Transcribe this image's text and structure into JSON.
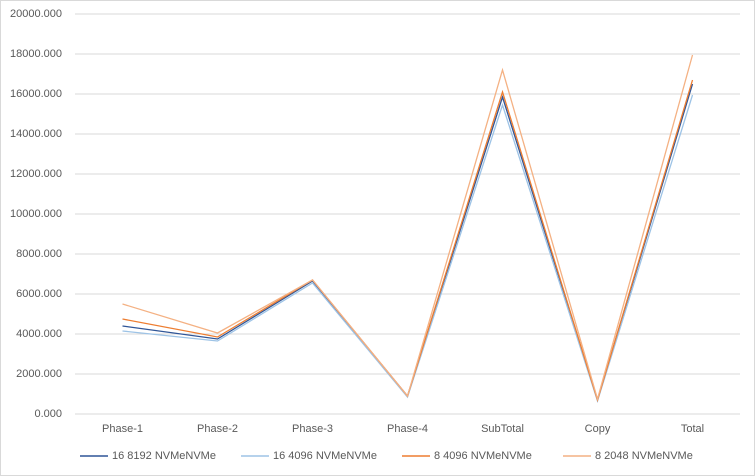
{
  "chart_data": {
    "type": "line",
    "categories": [
      "Phase-1",
      "Phase-2",
      "Phase-3",
      "Phase-4",
      "SubTotal",
      "Copy",
      "Total"
    ],
    "series": [
      {
        "name": "16 8192 NVMeNVMe",
        "color": "#2f5597",
        "values": [
          4400,
          3750,
          6650,
          900,
          15850,
          700,
          16500
        ]
      },
      {
        "name": "16 4096 NVMeNVMe",
        "color": "#9dc3e6",
        "values": [
          4150,
          3650,
          6550,
          850,
          15450,
          650,
          15950
        ]
      },
      {
        "name": "8 4096 NVMeNVMe",
        "color": "#ed7d31",
        "values": [
          4750,
          3850,
          6700,
          900,
          16100,
          700,
          16700
        ]
      },
      {
        "name": "8 2048 NVMeNVMe",
        "color": "#f4b183",
        "values": [
          5500,
          4050,
          6700,
          900,
          17200,
          750,
          17950
        ]
      }
    ],
    "ylim": [
      0,
      20000
    ],
    "yticks": [
      {
        "value": 0,
        "label": "0.000"
      },
      {
        "value": 2000,
        "label": "2000.000"
      },
      {
        "value": 4000,
        "label": "4000.000"
      },
      {
        "value": 6000,
        "label": "6000.000"
      },
      {
        "value": 8000,
        "label": "8000.000"
      },
      {
        "value": 10000,
        "label": "10000.000"
      },
      {
        "value": 12000,
        "label": "12000.000"
      },
      {
        "value": 14000,
        "label": "14000.000"
      },
      {
        "value": 16000,
        "label": "16000.000"
      },
      {
        "value": 18000,
        "label": "18000.000"
      },
      {
        "value": 20000,
        "label": "20000.000"
      }
    ],
    "grid": true,
    "legend": "bottom"
  }
}
